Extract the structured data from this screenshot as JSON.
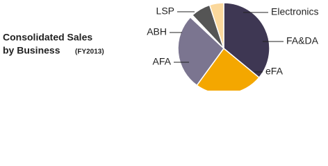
{
  "chart_data": {
    "type": "pie",
    "title_lines": [
      "Consolidated Sales",
      "by Business"
    ],
    "subtitle": "(FY2013)",
    "categories": [
      "FA&DA",
      "eFA",
      "AFA",
      "ABH",
      "LSP",
      "Electronics"
    ],
    "values": [
      36,
      24,
      27,
      1,
      7,
      5
    ],
    "colors": [
      "#3e3753",
      "#f4a700",
      "#7b7590",
      "#ffffff",
      "#555555",
      "#fbd89c"
    ]
  }
}
